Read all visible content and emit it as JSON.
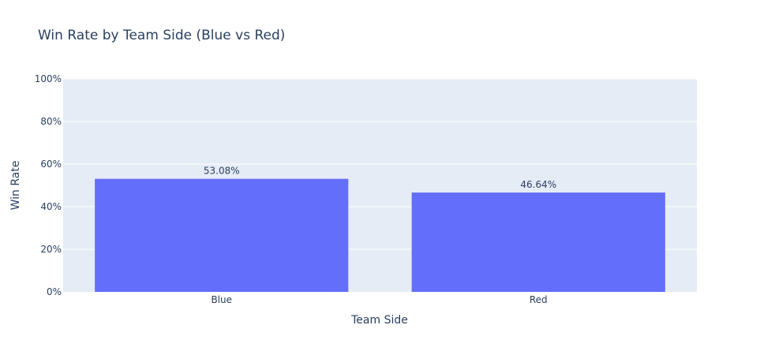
{
  "chart_data": {
    "type": "bar",
    "title": "Win Rate by Team Side (Blue vs Red)",
    "xlabel": "Team Side",
    "ylabel": "Win Rate",
    "categories": [
      "Blue",
      "Red"
    ],
    "values": [
      0.5308,
      0.4664
    ],
    "data_labels": [
      "53.08%",
      "46.64%"
    ],
    "ylim": [
      0,
      1
    ],
    "yticks": [
      0,
      0.2,
      0.4,
      0.6,
      0.8,
      1.0
    ],
    "ytick_labels": [
      "0%",
      "20%",
      "40%",
      "60%",
      "80%",
      "100%"
    ],
    "grid": true,
    "legend": "none",
    "colors": {
      "bar": "#636efa",
      "plot_bg": "#e5ecf6",
      "grid": "#ffffff",
      "text": "#2a3f5f"
    }
  }
}
